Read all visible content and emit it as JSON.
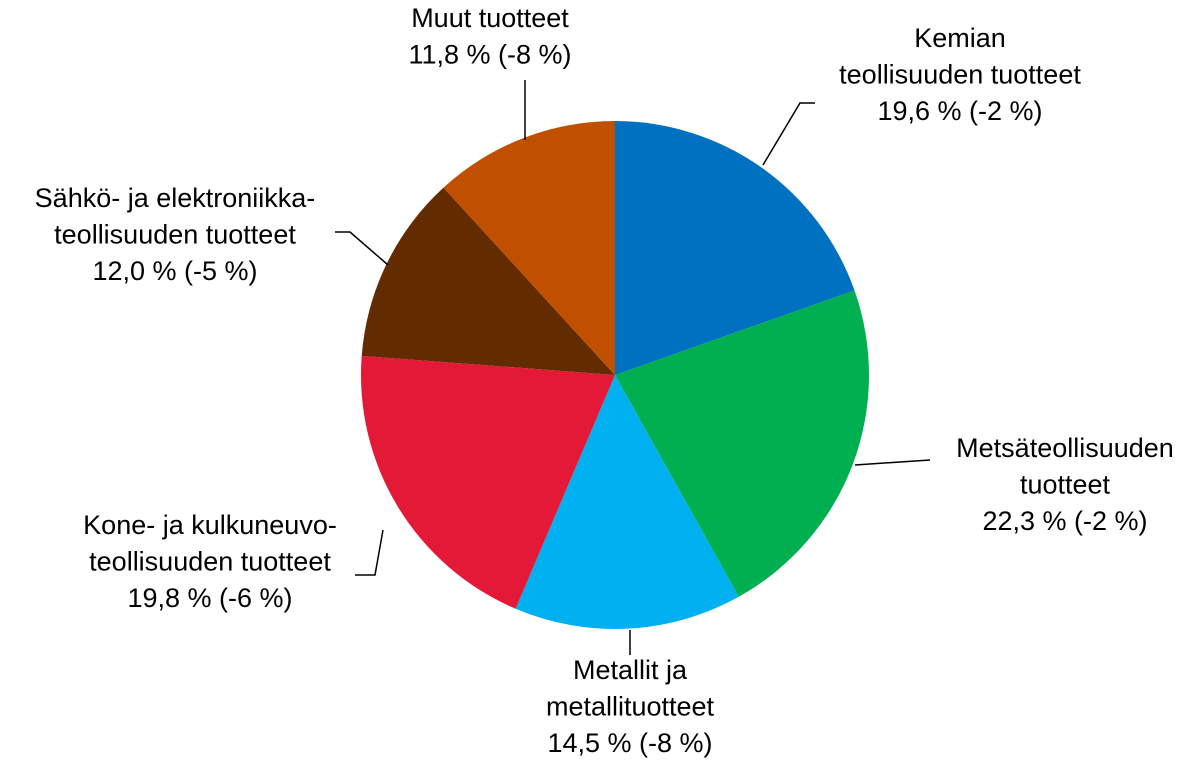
{
  "chart_data": {
    "type": "pie",
    "categories": [
      [
        "Kemian",
        "teollisuuden tuotteet"
      ],
      [
        "Metsäteollisuuden",
        "tuotteet"
      ],
      [
        "Metallit ja",
        "metallituotteet"
      ],
      [
        "Kone- ja kulkuneuvo-",
        "teollisuuden tuotteet"
      ],
      [
        "Sähkö- ja elektroniikka-",
        "teollisuuden tuotteet"
      ],
      [
        "Muut tuotteet"
      ]
    ],
    "values": [
      19.6,
      22.3,
      14.5,
      19.8,
      12.0,
      11.8
    ],
    "value_labels": [
      "19,6 %",
      "22,3 %",
      "14,5 %",
      "19,8 %",
      "12,0 %",
      "11,8 %"
    ],
    "changes": [
      {
        "value": -2,
        "label": "(-2 %)"
      },
      {
        "value": -2,
        "label": "(-2 %)"
      },
      {
        "value": -8,
        "label": "(-8 %)"
      },
      {
        "value": -6,
        "label": "(-6 %)"
      },
      {
        "value": -5,
        "label": "(-5 %)"
      },
      {
        "value": -8,
        "label": "(-8 %)"
      }
    ],
    "colors": [
      "#0070c0",
      "#00b050",
      "#00b0f0",
      "#e31937",
      "#632c00",
      "#c05000"
    ]
  }
}
